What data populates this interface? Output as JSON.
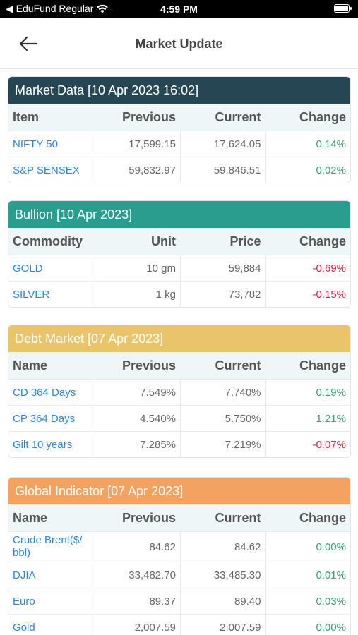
{
  "status": {
    "carrier": "◀ EduFund Regular",
    "time": "4:59 PM"
  },
  "header": {
    "title": "Market Update"
  },
  "colors": {
    "market": "#274653",
    "bullion": "#2a9d8f",
    "debt": "#e9c46a",
    "global": "#f4a261",
    "positive": "#3aa06d",
    "negative": "#d0233f",
    "link": "#2f86d6"
  },
  "market_data": {
    "title": "Market Data [10 Apr 2023 16:02]",
    "columns": [
      "Item",
      "Previous",
      "Current",
      "Change"
    ],
    "rows": [
      {
        "name": "NIFTY 50",
        "previous": "17,599.15",
        "current": "17,624.05",
        "change": "0.14%"
      },
      {
        "name": "S&P SENSEX",
        "previous": "59,832.97",
        "current": "59,846.51",
        "change": "0.02%"
      }
    ]
  },
  "bullion": {
    "title": "Bullion [10 Apr 2023]",
    "columns": [
      "Commodity",
      "Unit",
      "Price",
      "Change"
    ],
    "rows": [
      {
        "name": "GOLD",
        "unit": "10 gm",
        "price": "59,884",
        "change": "-0.69%"
      },
      {
        "name": "SILVER",
        "unit": "1 kg",
        "price": "73,782",
        "change": "-0.15%"
      }
    ]
  },
  "debt_market": {
    "title": "Debt Market [07 Apr 2023]",
    "columns": [
      "Name",
      "Previous",
      "Current",
      "Change"
    ],
    "rows": [
      {
        "name": "CD 364 Days",
        "previous": "7.549%",
        "current": "7.740%",
        "change": "0.19%"
      },
      {
        "name": "CP 364 Days",
        "previous": "4.540%",
        "current": "5.750%",
        "change": "1.21%"
      },
      {
        "name": "Gilt 10 years",
        "previous": "7.285%",
        "current": "7.219%",
        "change": "-0.07%"
      }
    ]
  },
  "global_indicator": {
    "title": "Global Indicator [07 Apr 2023]",
    "columns": [
      "Name",
      "Previous",
      "Current",
      "Change"
    ],
    "rows": [
      {
        "name": "Crude Brent($/ bbl)",
        "previous": "84.62",
        "current": "84.62",
        "change": "0.00%"
      },
      {
        "name": "DJIA",
        "previous": "33,482.70",
        "current": "33,485.30",
        "change": "0.01%"
      },
      {
        "name": "Euro",
        "previous": "89.37",
        "current": "89.40",
        "change": "0.03%"
      },
      {
        "name": "Gold",
        "previous": "2,007.59",
        "current": "2,007.59",
        "change": "0.00%"
      }
    ]
  }
}
